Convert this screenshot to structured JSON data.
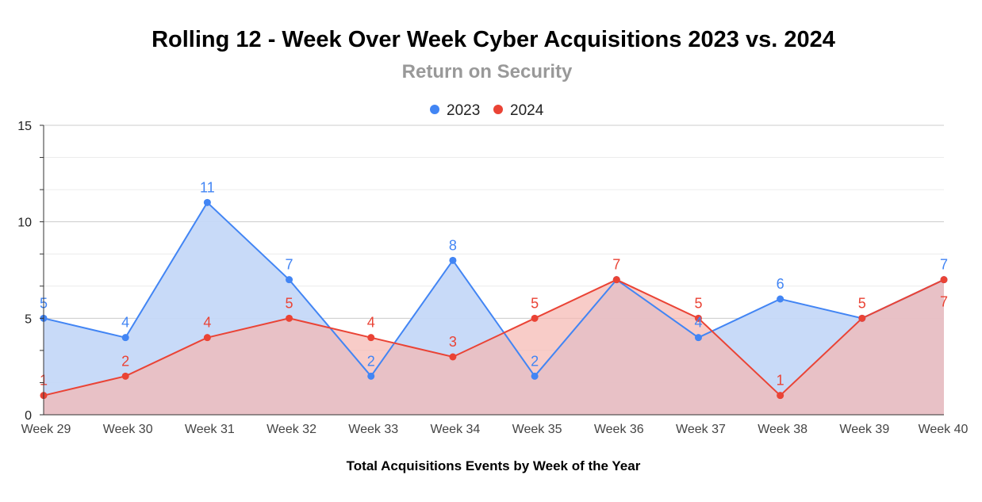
{
  "chart_data": {
    "type": "area",
    "title": "Rolling 12 - Week Over Week Cyber Acquisitions 2023 vs. 2024",
    "subtitle": "Return on Security",
    "xlabel": "Total Acquisitions Events by Week of the Year",
    "ylabel": "",
    "categories": [
      "Week 29",
      "Week 30",
      "Week 31",
      "Week 32",
      "Week 33",
      "Week 34",
      "Week 35",
      "Week 36",
      "Week 37",
      "Week 38",
      "Week 39",
      "Week 40"
    ],
    "series": [
      {
        "name": "2023",
        "color": "#4285f4",
        "fill": "#c5d8f8",
        "values": [
          5,
          4,
          11,
          7,
          2,
          8,
          2,
          7,
          4,
          6,
          5,
          7
        ]
      },
      {
        "name": "2024",
        "color": "#ea4335",
        "fill": "#f5b6b0",
        "values": [
          1,
          2,
          4,
          5,
          4,
          3,
          5,
          7,
          5,
          1,
          5,
          7
        ]
      }
    ],
    "ylim": [
      0,
      15
    ],
    "yticks": [
      "0",
      "5",
      "10",
      "15"
    ],
    "ytick_values": [
      0,
      5,
      10,
      15
    ],
    "grid": true,
    "legend": "top-center"
  }
}
